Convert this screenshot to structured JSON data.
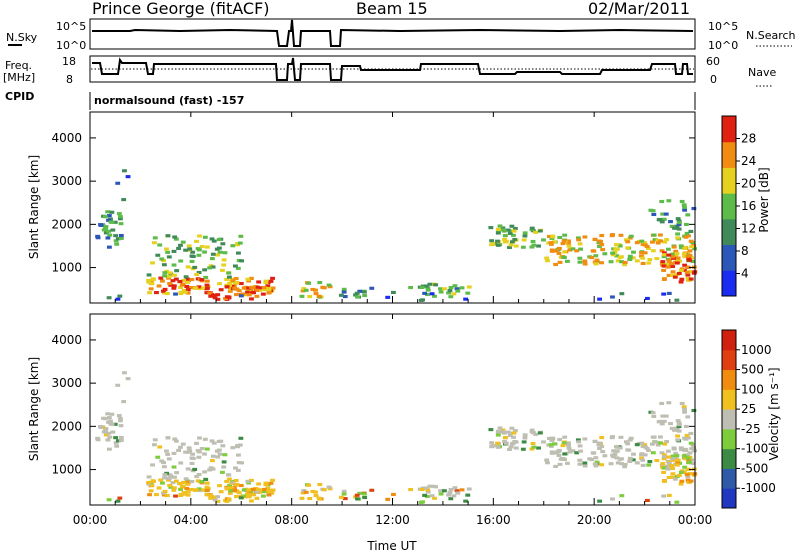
{
  "header": {
    "station": "Prince George (fitACF)",
    "beam": "Beam 15",
    "date": "02/Mar/2011"
  },
  "status_panel": {
    "nsky_label": "N.Sky",
    "nsky_ticks": [
      "10^5",
      "10^0"
    ],
    "nsearch_label": "N.Search",
    "nsearch_ticks": [
      "10^5",
      "10^0"
    ],
    "freq_label_1": "Freq.",
    "freq_label_2": "[MHz]",
    "freq_ticks": [
      "18",
      "8"
    ],
    "nave_label": "Nave",
    "nave_ticks": [
      "60",
      "0"
    ],
    "cpid_label": "CPID",
    "cpid_value": "normalsound (fast) -157"
  },
  "chart_data": [
    {
      "type": "heatmap",
      "title": "Power",
      "ylabel": "Slant Range [km]",
      "xlabel": "",
      "ylim": [
        180,
        4600
      ],
      "yticks": [
        "1000",
        "2000",
        "3000",
        "4000"
      ],
      "colorbar": {
        "label": "Power [dB]",
        "ticks": [
          "28",
          "24",
          "20",
          "16",
          "12",
          "8",
          "4"
        ],
        "colors": [
          "#1a2cf0",
          "#2b57b8",
          "#3f8a58",
          "#5dbb4a",
          "#e6d21e",
          "#f08c10",
          "#e02010"
        ]
      }
    },
    {
      "type": "heatmap",
      "title": "Velocity",
      "ylabel": "Slant Range [km]",
      "xlabel": "Time UT",
      "ylim": [
        180,
        4600
      ],
      "yticks": [
        "1000",
        "2000",
        "3000",
        "4000"
      ],
      "xticks": [
        "00:00",
        "04:00",
        "08:00",
        "12:00",
        "16:00",
        "20:00",
        "00:00"
      ],
      "colorbar": {
        "label": "Velocity  [m s⁻¹]",
        "ticks": [
          "1000",
          "500",
          "100",
          "25",
          "-25",
          "-100",
          "-500",
          "-1000"
        ],
        "colors": [
          "#2038c0",
          "#2e5aa8",
          "#3c8a44",
          "#7ccc3c",
          "#bebeb2",
          "#f0c020",
          "#f08c10",
          "#e04010",
          "#d02010"
        ]
      }
    }
  ]
}
